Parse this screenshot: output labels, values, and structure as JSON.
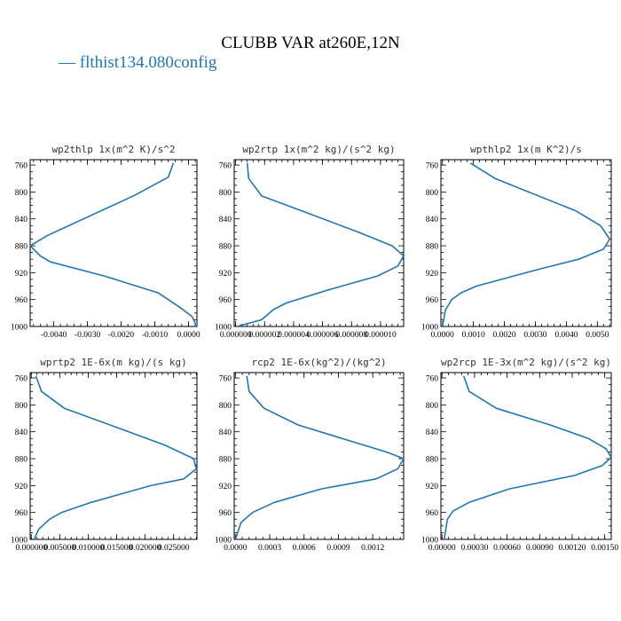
{
  "figure": {
    "title": "CLUBB VAR at260E,12N",
    "legend": [
      {
        "label": "— flthist134.080config",
        "color": "#1f77b4"
      }
    ]
  },
  "chart_data": [
    {
      "type": "line",
      "title": "wp2thlp  1x(m^2 K)/s^2",
      "color": "#1f77b4",
      "x_ticks": [
        "-0.0040",
        "-0.0030",
        "-0.0020",
        "-0.0010",
        "0.0000"
      ],
      "x_tick_values": [
        -0.004,
        -0.003,
        -0.002,
        -0.001,
        0.0
      ],
      "xlim": [
        -0.0047,
        0.00025
      ],
      "y_ticks": [
        "760",
        "800",
        "840",
        "880",
        "920",
        "960",
        "1000"
      ],
      "y_tick_values": [
        760,
        800,
        840,
        880,
        920,
        960,
        1000
      ],
      "ylim": [
        1000,
        752
      ],
      "y_inverted": true,
      "x": [
        -0.00045,
        -0.0006,
        -0.0016,
        -0.0032,
        -0.0042,
        -0.0047,
        -0.0044,
        -0.0041,
        -0.0025,
        -0.0009,
        -0.0003,
        0.0001,
        0.0002,
        0.0002
      ],
      "y": [
        757,
        778,
        805,
        842,
        865,
        880,
        895,
        904,
        925,
        950,
        970,
        985,
        995,
        1000
      ]
    },
    {
      "type": "line",
      "title": "wp2rtp  1x(m^2 kg)/(s^2 kg)",
      "color": "#1f77b4",
      "x_ticks": [
        "0.000000",
        "0.000002",
        "0.000004",
        "0.000006",
        "0.000008",
        "0.000010"
      ],
      "x_tick_values": [
        0.0,
        2e-06,
        4e-06,
        6e-06,
        8e-06,
        1e-05
      ],
      "xlim": [
        -1e-07,
        1.16e-05
      ],
      "y_ticks": [
        "760",
        "800",
        "840",
        "880",
        "920",
        "960",
        "1000"
      ],
      "y_tick_values": [
        760,
        800,
        840,
        880,
        920,
        960,
        1000
      ],
      "ylim": [
        1000,
        752
      ],
      "y_inverted": true,
      "x": [
        8e-07,
        9e-07,
        1.8e-06,
        4.8e-06,
        8.5e-06,
        1.08e-05,
        1.16e-05,
        1.12e-05,
        9.8e-06,
        6.5e-06,
        5e-06,
        3.5e-06,
        2.6e-06,
        1.8e-06,
        1e-07
      ],
      "y": [
        757,
        780,
        806,
        830,
        860,
        880,
        895,
        910,
        925,
        945,
        955,
        965,
        975,
        990,
        1000
      ]
    },
    {
      "type": "line",
      "title": "wpthlp2  1x(m K^2)/s",
      "color": "#1f77b4",
      "x_ticks": [
        "0.0000",
        "0.0010",
        "0.0020",
        "0.0030",
        "0.0040",
        "0.0050"
      ],
      "x_tick_values": [
        0.0,
        0.001,
        0.002,
        0.003,
        0.004,
        0.005
      ],
      "xlim": [
        -5e-05,
        0.00545
      ],
      "y_ticks": [
        "760",
        "800",
        "840",
        "880",
        "920",
        "960",
        "1000"
      ],
      "y_tick_values": [
        760,
        800,
        840,
        880,
        920,
        960,
        1000
      ],
      "ylim": [
        1000,
        752
      ],
      "y_inverted": true,
      "x": [
        0.0009,
        0.0017,
        0.0043,
        0.0051,
        0.0054,
        0.0052,
        0.0044,
        0.0031,
        0.0023,
        0.0011,
        0.0006,
        0.0003,
        0.0001,
        0.0
      ],
      "y": [
        757,
        780,
        828,
        850,
        870,
        885,
        900,
        915,
        925,
        940,
        950,
        960,
        975,
        1000
      ]
    },
    {
      "type": "line",
      "title": "wprtp2  1E-6x(m kg)/(s kg)",
      "color": "#1f77b4",
      "x_ticks": [
        "0.000000",
        "0.005000",
        "0.010000",
        "0.015000",
        "0.020000",
        "0.025000"
      ],
      "x_tick_values": [
        0.0,
        0.005,
        0.01,
        0.015,
        0.02,
        0.025
      ],
      "xlim": [
        -0.0002,
        0.0291
      ],
      "y_ticks": [
        "760",
        "800",
        "840",
        "880",
        "920",
        "960",
        "1000"
      ],
      "y_tick_values": [
        760,
        800,
        840,
        880,
        920,
        960,
        1000
      ],
      "ylim": [
        1000,
        752
      ],
      "y_inverted": true,
      "x": [
        0.0008,
        0.0018,
        0.0058,
        0.0155,
        0.0235,
        0.0285,
        0.029,
        0.0268,
        0.021,
        0.0105,
        0.0053,
        0.0032,
        0.0013,
        0.0005
      ],
      "y": [
        757,
        780,
        805,
        835,
        860,
        880,
        895,
        910,
        920,
        945,
        960,
        970,
        985,
        1000
      ]
    },
    {
      "type": "line",
      "title": "rcp2  1E-6x(kg^2)/(kg^2)",
      "color": "#1f77b4",
      "x_ticks": [
        "0.0000",
        "0.0003",
        "0.0006",
        "0.0009",
        "0.0012"
      ],
      "x_tick_values": [
        0.0,
        0.0003,
        0.0006,
        0.0009,
        0.0012
      ],
      "xlim": [
        -1e-05,
        0.00147
      ],
      "y_ticks": [
        "760",
        "800",
        "840",
        "880",
        "920",
        "960",
        "1000"
      ],
      "y_tick_values": [
        760,
        800,
        840,
        880,
        920,
        960,
        1000
      ],
      "ylim": [
        1000,
        752
      ],
      "y_inverted": true,
      "x": [
        0.0001,
        0.00012,
        0.00025,
        0.00055,
        0.00103,
        0.00132,
        0.00147,
        0.00142,
        0.00123,
        0.00075,
        0.00034,
        0.00015,
        5e-05,
        0.0
      ],
      "y": [
        757,
        780,
        805,
        830,
        855,
        870,
        880,
        895,
        910,
        925,
        945,
        960,
        975,
        1000
      ]
    },
    {
      "type": "line",
      "title": "wp2rcp  1E-3x(m^2 kg)/(s^2 kg)",
      "color": "#1f77b4",
      "x_ticks": [
        "0.00000",
        "0.00030",
        "0.00060",
        "0.00090",
        "0.00120",
        "0.00150"
      ],
      "x_tick_values": [
        0.0,
        0.0003,
        0.0006,
        0.0009,
        0.0012,
        0.0015
      ],
      "xlim": [
        -1e-05,
        0.00156
      ],
      "y_ticks": [
        "760",
        "800",
        "840",
        "880",
        "920",
        "960",
        "1000"
      ],
      "y_tick_values": [
        760,
        800,
        840,
        880,
        920,
        960,
        1000
      ],
      "ylim": [
        1000,
        752
      ],
      "y_inverted": true,
      "x": [
        0.0002,
        0.00025,
        0.0005,
        0.001,
        0.00135,
        0.00151,
        0.00156,
        0.00148,
        0.00122,
        0.00062,
        0.00025,
        0.0001,
        5e-05,
        2e-05
      ],
      "y": [
        757,
        780,
        805,
        830,
        850,
        865,
        878,
        890,
        905,
        925,
        945,
        958,
        970,
        1000
      ]
    }
  ]
}
